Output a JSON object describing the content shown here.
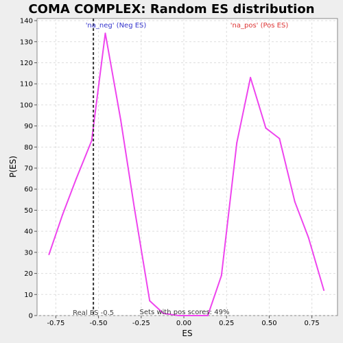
{
  "chart_data": {
    "type": "line",
    "title": "COMA COMPLEX: Random ES distribution",
    "xlabel": "ES",
    "ylabel": "P(ES)",
    "xlim": [
      -0.86,
      0.9
    ],
    "ylim": [
      0,
      141
    ],
    "x_ticks": [
      -0.75,
      -0.5,
      -0.25,
      0.0,
      0.25,
      0.5,
      0.75
    ],
    "x_tick_labels": [
      "-0.75",
      "-0.50",
      "-0.25",
      "0.00",
      "0.25",
      "0.50",
      "0.75"
    ],
    "y_ticks": [
      0,
      10,
      20,
      30,
      40,
      50,
      60,
      70,
      80,
      90,
      100,
      110,
      120,
      130,
      140
    ],
    "y_tick_labels": [
      "0",
      "10",
      "20",
      "30",
      "40",
      "50",
      "60",
      "70",
      "80",
      "90",
      "100",
      "110",
      "120",
      "130",
      "140"
    ],
    "grid": true,
    "series": [
      {
        "color": "#ee44ee",
        "x": [
          -0.79,
          -0.71,
          -0.63,
          -0.54,
          -0.46,
          -0.37,
          -0.29,
          -0.2,
          -0.12,
          -0.03,
          0.05,
          0.14,
          0.22,
          0.31,
          0.39,
          0.48,
          0.56,
          0.65,
          0.73,
          0.82
        ],
        "y": [
          29,
          48,
          65,
          83,
          134,
          93,
          51,
          7,
          1,
          0,
          0,
          0,
          19,
          82,
          113,
          89,
          84,
          54,
          37,
          12
        ]
      }
    ],
    "real_es": {
      "x": -0.53,
      "label": "Real ES -0.5",
      "color": "#333333"
    },
    "annotations": {
      "neg_label": "'na_neg' (Neg ES)",
      "neg_color": "#3333cc",
      "pos_label": "'na_pos' (Pos ES)",
      "pos_color": "#dd3333",
      "pos_scores_label": "Sets with pos scores: 49%"
    },
    "colors": {
      "background": "#eeeeee",
      "plot_background": "#ffffff",
      "grid": "#dddddd"
    }
  }
}
